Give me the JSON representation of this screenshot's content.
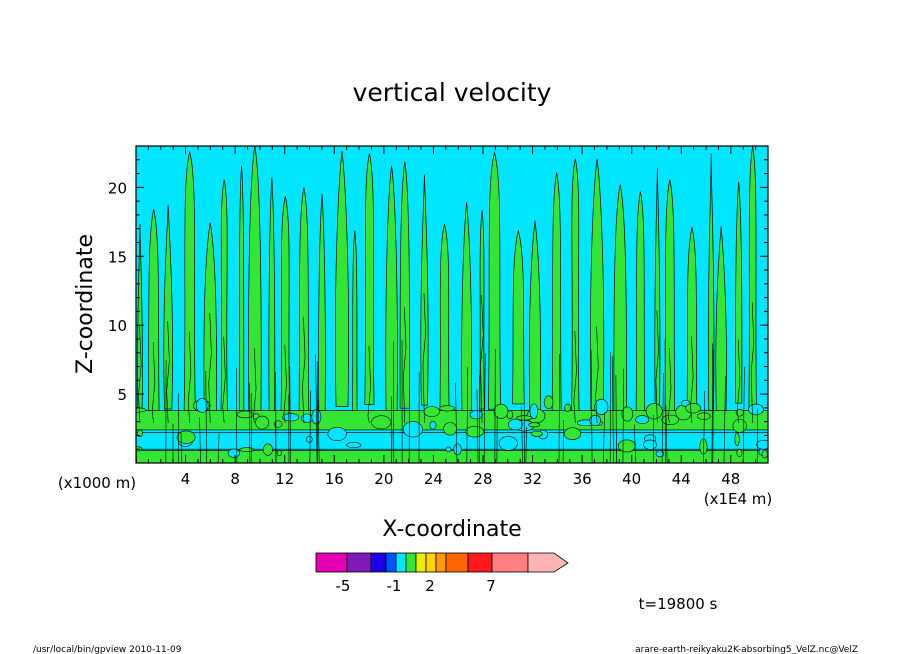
{
  "chart_data": {
    "type": "heatmap",
    "title": "vertical velocity",
    "xlabel": "X-coordinate",
    "ylabel": "Z-coordinate",
    "x_unit": "(x1E4 m)",
    "y_unit": "(x1000 m)",
    "xlim": [
      0,
      51
    ],
    "ylim": [
      0,
      23
    ],
    "x_ticks": [
      "4",
      "8",
      "12",
      "16",
      "20",
      "24",
      "28",
      "32",
      "36",
      "40",
      "44",
      "48"
    ],
    "y_ticks": [
      "5",
      "10",
      "15",
      "20"
    ],
    "x_minor_step": 1,
    "y_minor_step": 1,
    "field": "contour field of vertical velocity; near zero everywhere (green/cyan), convective columns from z≈2 to z≈23, low-level bands at z≈0–3",
    "colorbar": {
      "colors": [
        "#e600b4",
        "#7f1ab9",
        "#1a00e6",
        "#0055ff",
        "#00e6ff",
        "#33e633",
        "#e6f000",
        "#ffd200",
        "#ff9900",
        "#ff6600",
        "#ff1a1a",
        "#ff7f7f",
        "#ffb4b4"
      ],
      "tick_labels": [
        "-5",
        "-1",
        "2",
        "7"
      ]
    },
    "time_label": "t=19800 s"
  },
  "footer": {
    "left": "/usr/local/bin/gpview  2010-11-09",
    "right": "arare-earth-reikyaku2K-absorbing5_VelZ.nc@VelZ"
  }
}
